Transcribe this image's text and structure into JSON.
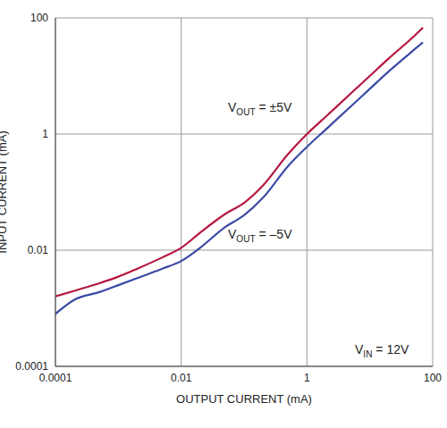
{
  "chart_data": {
    "type": "line",
    "x_label": "OUTPUT CURRENT (mA)",
    "y_label": "INPUT CURRENT (mA)",
    "annotations": [
      "VIN = 12V"
    ],
    "x": [
      0.0001,
      0.0002,
      0.0005,
      0.001,
      0.002,
      0.005,
      0.01,
      0.02,
      0.05,
      0.1,
      0.2,
      0.5,
      1,
      2,
      5,
      10,
      20,
      50,
      70
    ],
    "series": [
      {
        "name": "VOUT = ±5V",
        "color": "#b5173f",
        "values": [
          0.0016,
          0.002,
          0.0027,
          0.0035,
          0.0048,
          0.0075,
          0.011,
          0.02,
          0.042,
          0.065,
          0.13,
          0.45,
          1.0,
          2.0,
          5.0,
          10,
          20,
          48,
          68
        ]
      },
      {
        "name": "VOUT = –5V",
        "color": "#3c4aa5",
        "values": [
          0.0008,
          0.0014,
          0.0019,
          0.0025,
          0.0033,
          0.0048,
          0.0065,
          0.011,
          0.025,
          0.04,
          0.08,
          0.28,
          0.6,
          1.2,
          3.0,
          6.0,
          12,
          28,
          38
        ]
      }
    ],
    "xlim": [
      0.0001,
      100
    ],
    "ylim": [
      0.0001,
      100
    ],
    "xticks": [
      0.0001,
      0.01,
      1,
      100
    ],
    "yticks": [
      0.0001,
      0.01,
      1,
      100
    ],
    "log": true,
    "grid": true
  }
}
